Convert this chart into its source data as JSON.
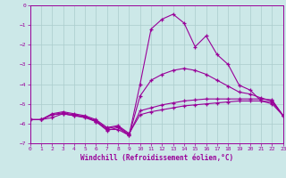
{
  "xlabel": "Windchill (Refroidissement éolien,°C)",
  "bg_color": "#cce8e8",
  "line_color": "#990099",
  "grid_color": "#aacccc",
  "xlim": [
    0,
    23
  ],
  "ylim": [
    -7,
    0
  ],
  "xticks": [
    0,
    1,
    2,
    3,
    4,
    5,
    6,
    7,
    8,
    9,
    10,
    11,
    12,
    13,
    14,
    15,
    16,
    17,
    18,
    19,
    20,
    21,
    22,
    23
  ],
  "yticks": [
    0,
    -1,
    -2,
    -3,
    -4,
    -5,
    -6,
    -7
  ],
  "series": [
    [
      [
        0,
        -5.8
      ],
      [
        1,
        -5.8
      ],
      [
        2,
        -5.7
      ],
      [
        3,
        -5.5
      ],
      [
        4,
        -5.6
      ],
      [
        5,
        -5.65
      ],
      [
        6,
        -5.9
      ],
      [
        7,
        -6.3
      ],
      [
        8,
        -6.3
      ],
      [
        9,
        -6.6
      ],
      [
        10,
        -4.0
      ],
      [
        11,
        -1.2
      ],
      [
        12,
        -0.7
      ],
      [
        13,
        -0.45
      ],
      [
        14,
        -0.9
      ],
      [
        15,
        -2.1
      ],
      [
        16,
        -1.55
      ],
      [
        17,
        -2.5
      ],
      [
        18,
        -3.0
      ],
      [
        19,
        -4.05
      ],
      [
        20,
        -4.3
      ],
      [
        21,
        -4.85
      ],
      [
        22,
        -5.0
      ],
      [
        23,
        -5.6
      ]
    ],
    [
      [
        0,
        -5.8
      ],
      [
        1,
        -5.8
      ],
      [
        2,
        -5.55
      ],
      [
        3,
        -5.5
      ],
      [
        4,
        -5.6
      ],
      [
        5,
        -5.7
      ],
      [
        6,
        -5.9
      ],
      [
        7,
        -6.35
      ],
      [
        8,
        -6.2
      ],
      [
        9,
        -6.6
      ],
      [
        10,
        -4.6
      ],
      [
        11,
        -3.8
      ],
      [
        12,
        -3.5
      ],
      [
        13,
        -3.3
      ],
      [
        14,
        -3.2
      ],
      [
        15,
        -3.3
      ],
      [
        16,
        -3.5
      ],
      [
        17,
        -3.8
      ],
      [
        18,
        -4.1
      ],
      [
        19,
        -4.4
      ],
      [
        20,
        -4.5
      ],
      [
        21,
        -4.7
      ],
      [
        22,
        -4.85
      ],
      [
        23,
        -5.6
      ]
    ],
    [
      [
        0,
        -5.8
      ],
      [
        1,
        -5.8
      ],
      [
        2,
        -5.55
      ],
      [
        3,
        -5.45
      ],
      [
        4,
        -5.55
      ],
      [
        5,
        -5.65
      ],
      [
        6,
        -5.85
      ],
      [
        7,
        -6.25
      ],
      [
        8,
        -6.15
      ],
      [
        9,
        -6.55
      ],
      [
        10,
        -5.35
      ],
      [
        11,
        -5.2
      ],
      [
        12,
        -5.05
      ],
      [
        13,
        -4.95
      ],
      [
        14,
        -4.85
      ],
      [
        15,
        -4.8
      ],
      [
        16,
        -4.75
      ],
      [
        17,
        -4.75
      ],
      [
        18,
        -4.75
      ],
      [
        19,
        -4.75
      ],
      [
        20,
        -4.75
      ],
      [
        21,
        -4.75
      ],
      [
        22,
        -4.8
      ],
      [
        23,
        -5.6
      ]
    ],
    [
      [
        0,
        -5.8
      ],
      [
        1,
        -5.8
      ],
      [
        2,
        -5.5
      ],
      [
        3,
        -5.4
      ],
      [
        4,
        -5.5
      ],
      [
        5,
        -5.6
      ],
      [
        6,
        -5.8
      ],
      [
        7,
        -6.2
      ],
      [
        8,
        -6.1
      ],
      [
        9,
        -6.5
      ],
      [
        10,
        -5.55
      ],
      [
        11,
        -5.4
      ],
      [
        12,
        -5.3
      ],
      [
        13,
        -5.2
      ],
      [
        14,
        -5.1
      ],
      [
        15,
        -5.05
      ],
      [
        16,
        -5.0
      ],
      [
        17,
        -4.95
      ],
      [
        18,
        -4.9
      ],
      [
        19,
        -4.85
      ],
      [
        20,
        -4.85
      ],
      [
        21,
        -4.85
      ],
      [
        22,
        -4.9
      ],
      [
        23,
        -5.6
      ]
    ]
  ]
}
